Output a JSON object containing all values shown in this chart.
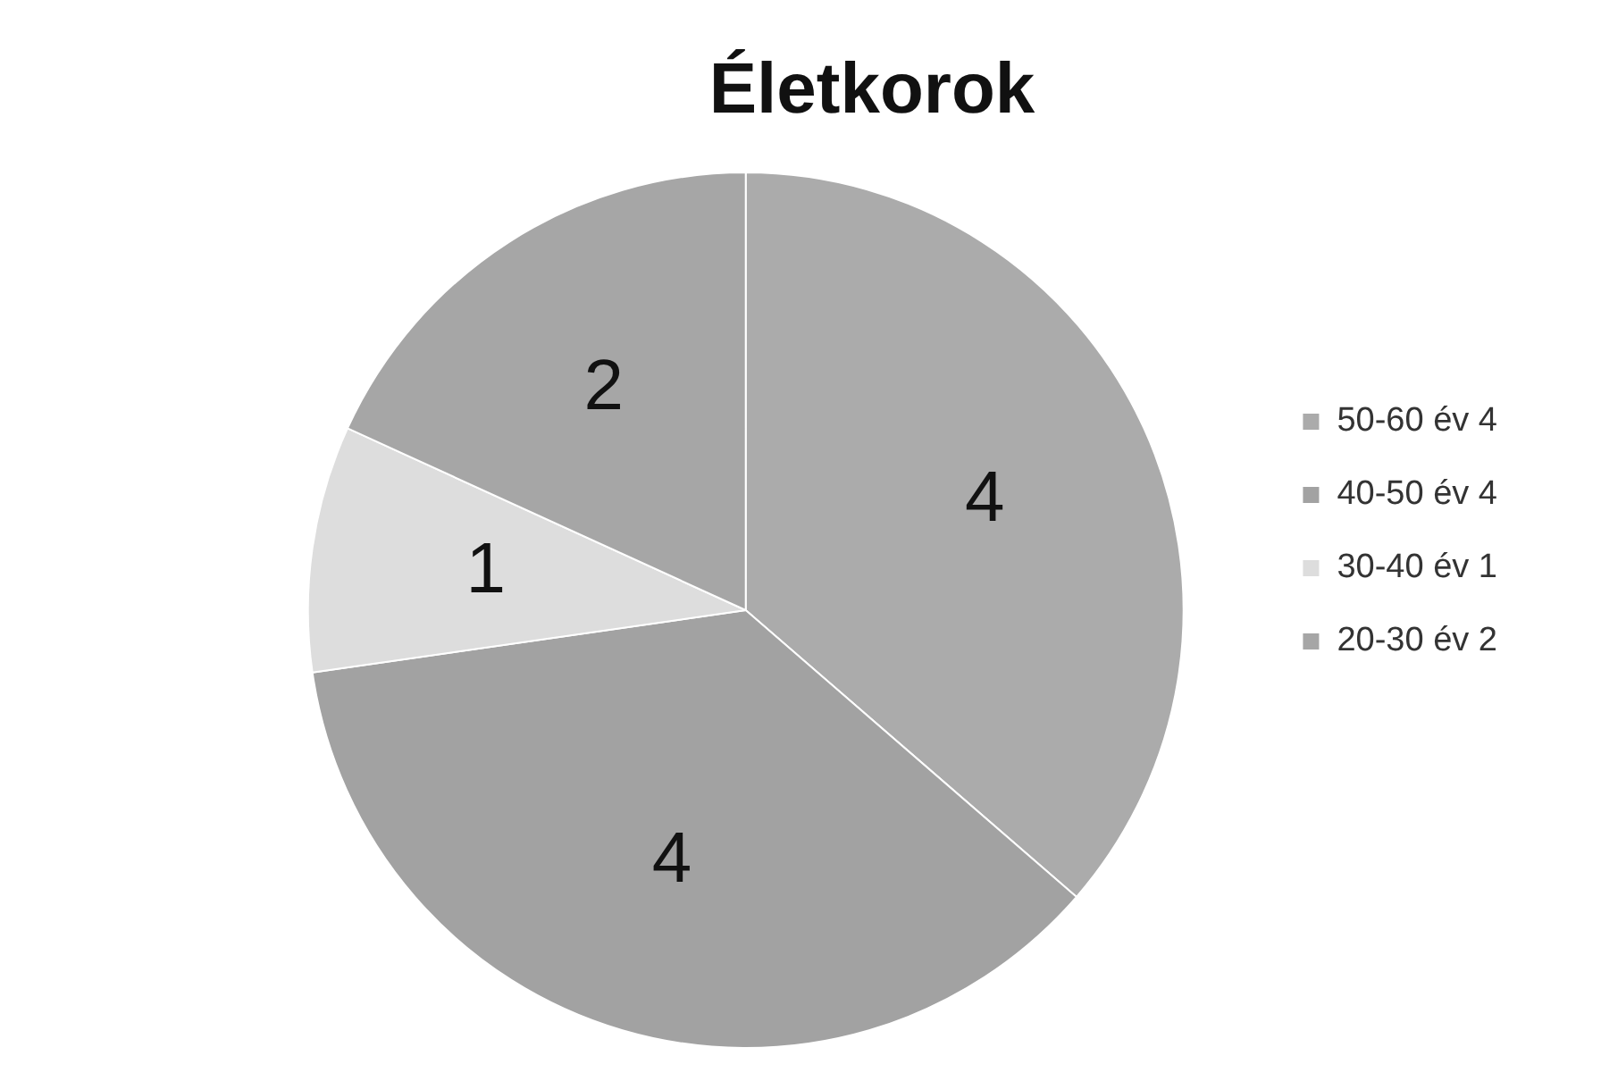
{
  "chart_data": {
    "type": "pie",
    "title": "Életkorok",
    "categories": [
      "50-60 év 4",
      "40-50 év 4",
      "30-40 év 1",
      "20-30 év 2"
    ],
    "values": [
      4,
      4,
      1,
      2
    ],
    "colors": [
      "#ababab",
      "#a2a2a2",
      "#dddddd",
      "#a6a6a6"
    ],
    "data_labels": true,
    "legend": "right"
  }
}
